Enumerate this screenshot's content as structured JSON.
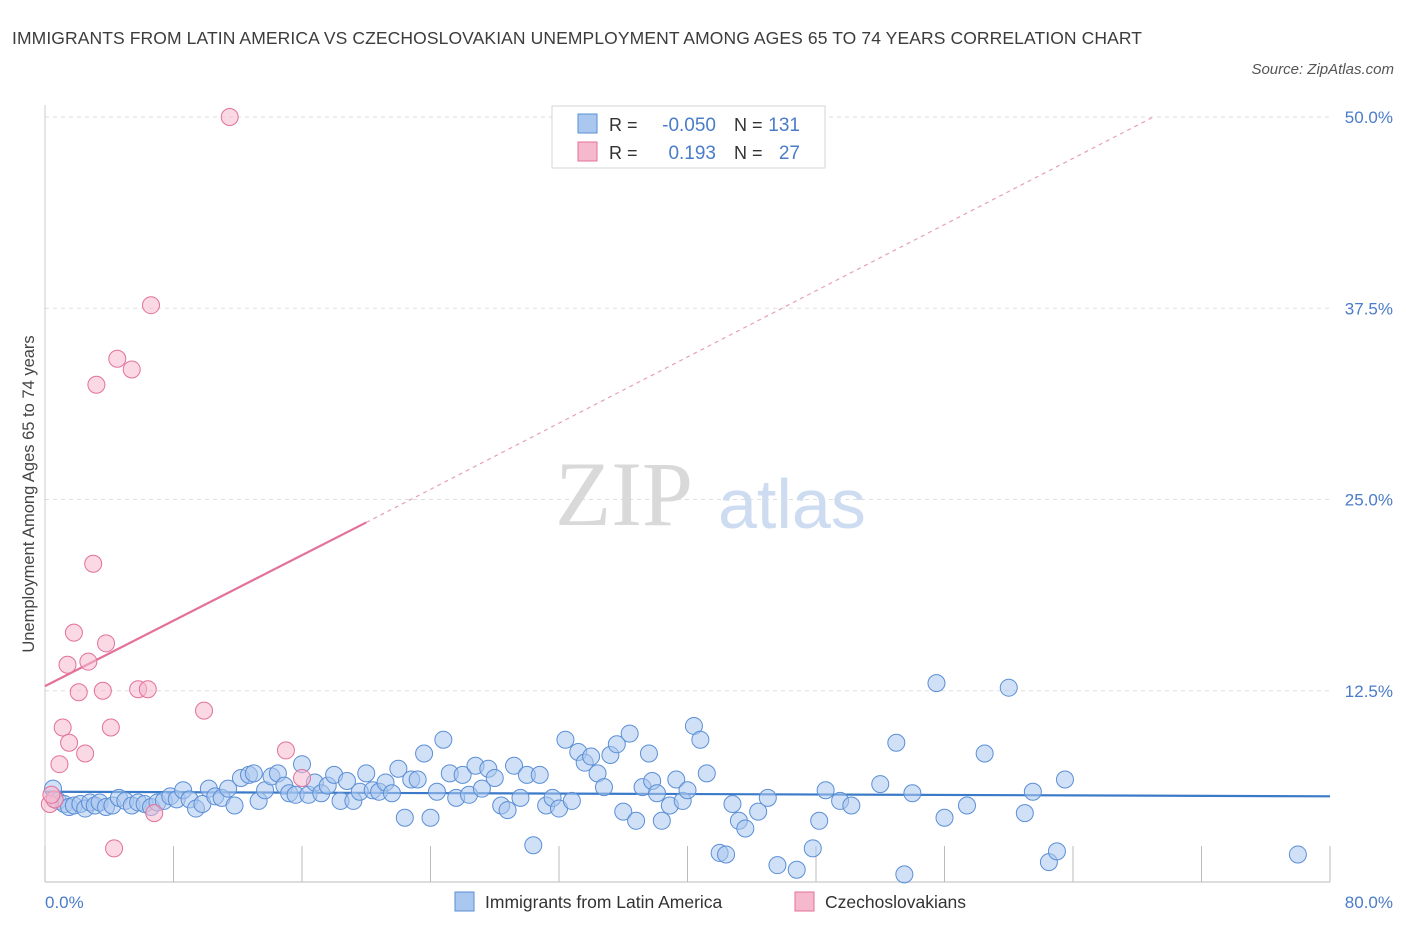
{
  "title": "IMMIGRANTS FROM LATIN AMERICA VS CZECHOSLOVAKIAN UNEMPLOYMENT AMONG AGES 65 TO 74 YEARS CORRELATION CHART",
  "source": "Source: ZipAtlas.com",
  "watermark": {
    "zip": "ZIP",
    "atlas": "atlas"
  },
  "colors": {
    "blue": "#5b8fd6",
    "blue_fill": "#aac7ef",
    "pink": "#e3719b",
    "pink_fill": "#f5b8cd",
    "axis_text": "#4a7cc9",
    "grid": "#dddddd"
  },
  "chart_data": {
    "type": "scatter",
    "xlabel": "",
    "ylabel": "Unemployment Among Ages 65 to 74 years",
    "xlim": [
      0,
      80
    ],
    "ylim": [
      0,
      50
    ],
    "x_tick_labels": [
      "0.0%",
      "80.0%"
    ],
    "y_ticks": [
      12.5,
      25,
      37.5,
      50
    ],
    "y_tick_labels": [
      "12.5%",
      "25.0%",
      "37.5%",
      "50.0%"
    ],
    "legend_stats": [
      {
        "r_label": "R =",
        "r_value": "-0.050",
        "n_label": "N =",
        "n_value": "131"
      },
      {
        "r_label": "R =",
        "r_value": "0.193",
        "n_label": "N =",
        "n_value": "27"
      }
    ],
    "series": [
      {
        "name": "Immigrants from Latin America",
        "color": "#5b8fd6",
        "trend": {
          "x0": 0,
          "y0": 5.9,
          "x1": 80,
          "y1": 5.6
        },
        "points": [
          [
            0.5,
            6.1
          ],
          [
            0.8,
            5.3
          ],
          [
            1.2,
            5.1
          ],
          [
            1.5,
            4.9
          ],
          [
            1.8,
            5.0
          ],
          [
            2.2,
            5.1
          ],
          [
            2.5,
            4.8
          ],
          [
            2.8,
            5.2
          ],
          [
            3.1,
            5.0
          ],
          [
            3.4,
            5.2
          ],
          [
            3.8,
            4.9
          ],
          [
            4.2,
            5.0
          ],
          [
            4.6,
            5.5
          ],
          [
            5.0,
            5.3
          ],
          [
            5.4,
            5.0
          ],
          [
            5.8,
            5.2
          ],
          [
            6.2,
            5.1
          ],
          [
            6.6,
            4.9
          ],
          [
            7.0,
            5.2
          ],
          [
            7.4,
            5.3
          ],
          [
            7.8,
            5.6
          ],
          [
            8.2,
            5.4
          ],
          [
            8.6,
            6.0
          ],
          [
            9.0,
            5.4
          ],
          [
            9.4,
            4.8
          ],
          [
            9.8,
            5.1
          ],
          [
            10.2,
            6.1
          ],
          [
            10.6,
            5.6
          ],
          [
            11.0,
            5.5
          ],
          [
            11.4,
            6.1
          ],
          [
            11.8,
            5.0
          ],
          [
            12.2,
            6.8
          ],
          [
            12.7,
            7.0
          ],
          [
            13.0,
            7.1
          ],
          [
            13.3,
            5.3
          ],
          [
            13.7,
            6.0
          ],
          [
            14.1,
            6.9
          ],
          [
            14.5,
            7.1
          ],
          [
            14.9,
            6.3
          ],
          [
            15.2,
            5.8
          ],
          [
            15.6,
            5.7
          ],
          [
            16.0,
            7.7
          ],
          [
            16.4,
            5.7
          ],
          [
            16.8,
            6.5
          ],
          [
            17.2,
            5.8
          ],
          [
            17.6,
            6.3
          ],
          [
            18.0,
            7.0
          ],
          [
            18.4,
            5.3
          ],
          [
            18.8,
            6.6
          ],
          [
            19.2,
            5.3
          ],
          [
            19.6,
            5.9
          ],
          [
            20.0,
            7.1
          ],
          [
            20.4,
            6.0
          ],
          [
            20.8,
            5.9
          ],
          [
            21.2,
            6.5
          ],
          [
            21.6,
            5.8
          ],
          [
            22.0,
            7.4
          ],
          [
            22.4,
            4.2
          ],
          [
            22.8,
            6.7
          ],
          [
            23.2,
            6.7
          ],
          [
            23.6,
            8.4
          ],
          [
            24.0,
            4.2
          ],
          [
            24.4,
            5.9
          ],
          [
            24.8,
            9.3
          ],
          [
            25.2,
            7.1
          ],
          [
            25.6,
            5.5
          ],
          [
            26.0,
            7.0
          ],
          [
            26.4,
            5.7
          ],
          [
            26.8,
            7.6
          ],
          [
            27.2,
            6.1
          ],
          [
            27.6,
            7.4
          ],
          [
            28.0,
            6.8
          ],
          [
            28.4,
            5.0
          ],
          [
            28.8,
            4.7
          ],
          [
            29.2,
            7.6
          ],
          [
            29.6,
            5.5
          ],
          [
            30.0,
            7.0
          ],
          [
            30.4,
            2.4
          ],
          [
            30.8,
            7.0
          ],
          [
            31.2,
            5.0
          ],
          [
            31.6,
            5.5
          ],
          [
            32.0,
            4.8
          ],
          [
            32.4,
            9.3
          ],
          [
            32.8,
            5.3
          ],
          [
            33.2,
            8.5
          ],
          [
            33.6,
            7.8
          ],
          [
            34.0,
            8.2
          ],
          [
            34.4,
            7.1
          ],
          [
            34.8,
            6.2
          ],
          [
            35.2,
            8.3
          ],
          [
            35.6,
            9.0
          ],
          [
            36.0,
            4.6
          ],
          [
            36.4,
            9.7
          ],
          [
            36.8,
            4.0
          ],
          [
            37.2,
            6.2
          ],
          [
            37.6,
            8.4
          ],
          [
            37.8,
            6.6
          ],
          [
            38.1,
            5.8
          ],
          [
            38.4,
            4.0
          ],
          [
            38.9,
            5.0
          ],
          [
            39.3,
            6.7
          ],
          [
            39.7,
            5.3
          ],
          [
            40.0,
            6.0
          ],
          [
            40.4,
            10.2
          ],
          [
            40.8,
            9.3
          ],
          [
            41.2,
            7.1
          ],
          [
            42.0,
            1.9
          ],
          [
            42.4,
            1.8
          ],
          [
            42.8,
            5.1
          ],
          [
            43.2,
            4.0
          ],
          [
            43.6,
            3.5
          ],
          [
            44.4,
            4.6
          ],
          [
            45.0,
            5.5
          ],
          [
            45.6,
            1.1
          ],
          [
            46.8,
            0.8
          ],
          [
            47.8,
            2.2
          ],
          [
            48.2,
            4.0
          ],
          [
            48.6,
            6.0
          ],
          [
            49.5,
            5.3
          ],
          [
            50.2,
            5.0
          ],
          [
            52.0,
            6.4
          ],
          [
            53.0,
            9.1
          ],
          [
            53.5,
            0.5
          ],
          [
            54.0,
            5.8
          ],
          [
            55.5,
            13.0
          ],
          [
            56.0,
            4.2
          ],
          [
            57.4,
            5.0
          ],
          [
            58.5,
            8.4
          ],
          [
            60.0,
            12.7
          ],
          [
            61.0,
            4.5
          ],
          [
            61.5,
            5.9
          ],
          [
            62.5,
            1.3
          ],
          [
            63.0,
            2.0
          ],
          [
            63.5,
            6.7
          ],
          [
            78.0,
            1.8
          ]
        ]
      },
      {
        "name": "Czechoslovakians",
        "color": "#e3719b",
        "trend": {
          "x0": 0,
          "y0": 12.8,
          "x1": 20,
          "y1": 23.5,
          "dash_to_x": 69,
          "dash_to_y": 50
        },
        "points": [
          [
            0.3,
            5.1
          ],
          [
            0.6,
            5.4
          ],
          [
            0.9,
            7.7
          ],
          [
            1.1,
            10.1
          ],
          [
            1.5,
            9.1
          ],
          [
            1.8,
            16.3
          ],
          [
            2.1,
            12.4
          ],
          [
            2.5,
            8.4
          ],
          [
            2.7,
            14.4
          ],
          [
            3.0,
            20.8
          ],
          [
            3.2,
            32.5
          ],
          [
            3.6,
            12.5
          ],
          [
            3.8,
            15.6
          ],
          [
            4.1,
            10.1
          ],
          [
            4.3,
            2.2
          ],
          [
            4.5,
            34.2
          ],
          [
            5.4,
            33.5
          ],
          [
            5.8,
            12.6
          ],
          [
            6.4,
            12.6
          ],
          [
            6.6,
            37.7
          ],
          [
            6.8,
            4.5
          ],
          [
            9.9,
            11.2
          ],
          [
            11.5,
            50.0
          ],
          [
            15.0,
            8.6
          ],
          [
            16.0,
            6.8
          ],
          [
            1.4,
            14.2
          ],
          [
            0.4,
            5.7
          ]
        ]
      }
    ]
  }
}
